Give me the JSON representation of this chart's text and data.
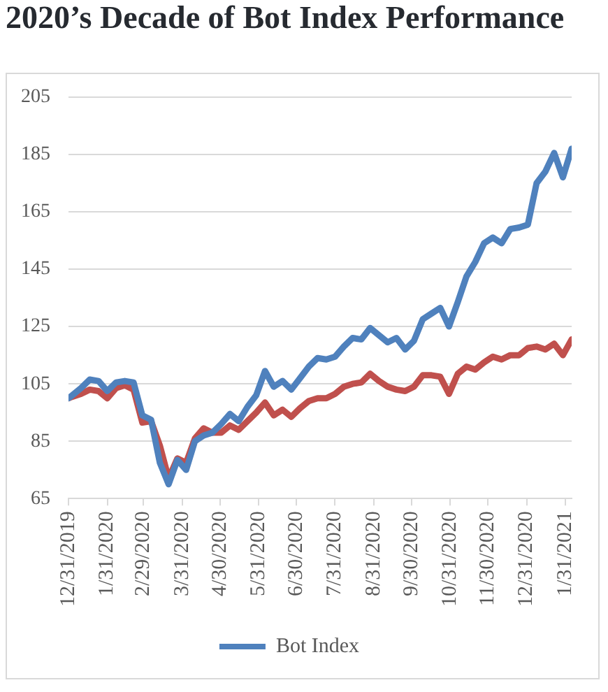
{
  "chart_data": {
    "type": "line",
    "title": "2020’s Decade of Bot Index Performance",
    "x": [
      "2019-12-31",
      "2020-01-03",
      "2020-01-10",
      "2020-01-17",
      "2020-01-24",
      "2020-01-31",
      "2020-02-07",
      "2020-02-14",
      "2020-02-21",
      "2020-02-28",
      "2020-03-06",
      "2020-03-13",
      "2020-03-20",
      "2020-03-27",
      "2020-04-03",
      "2020-04-10",
      "2020-04-17",
      "2020-04-24",
      "2020-05-01",
      "2020-05-08",
      "2020-05-15",
      "2020-05-22",
      "2020-05-29",
      "2020-06-05",
      "2020-06-12",
      "2020-06-19",
      "2020-06-26",
      "2020-07-03",
      "2020-07-10",
      "2020-07-17",
      "2020-07-24",
      "2020-07-31",
      "2020-08-07",
      "2020-08-14",
      "2020-08-21",
      "2020-08-28",
      "2020-09-04",
      "2020-09-11",
      "2020-09-18",
      "2020-09-25",
      "2020-10-02",
      "2020-10-09",
      "2020-10-16",
      "2020-10-23",
      "2020-10-30",
      "2020-11-06",
      "2020-11-13",
      "2020-11-20",
      "2020-11-27",
      "2020-12-04",
      "2020-12-11",
      "2020-12-18",
      "2020-12-25",
      "2021-01-01",
      "2021-01-08",
      "2021-01-15",
      "2021-01-22",
      "2021-01-29",
      "2021-02-05"
    ],
    "series": [
      {
        "name": "Bot Index",
        "color": "#4f81bd",
        "values": [
          100,
          101,
          103.5,
          106.5,
          106,
          102.5,
          105.5,
          106,
          105.5,
          94,
          92.5,
          77.5,
          70,
          78.5,
          75,
          85,
          87,
          88,
          91,
          94.5,
          92,
          97,
          101,
          109.5,
          104,
          106,
          103,
          107,
          111,
          114,
          113.5,
          114.5,
          118,
          121,
          120.5,
          124.5,
          122,
          119.5,
          121,
          117,
          120,
          127.5,
          129.5,
          131.5,
          125,
          133.5,
          142.5,
          147.5,
          154,
          156,
          154,
          159,
          159.5,
          160.5,
          175,
          179,
          185.5,
          177,
          187
        ]
      },
      {
        "color": "#c0504d",
        "values": [
          100,
          100.5,
          101.5,
          103,
          102.5,
          100,
          103.5,
          104.5,
          103,
          91.5,
          92,
          83.5,
          72,
          79,
          77.5,
          86,
          89.5,
          88,
          88,
          90.5,
          89,
          92,
          95,
          98.5,
          94,
          96,
          93.5,
          96.5,
          99,
          100,
          100,
          101.5,
          104,
          105,
          105.5,
          108.5,
          106,
          104,
          103,
          102.5,
          104,
          108,
          108,
          107.5,
          101.5,
          108.5,
          111,
          110,
          112.5,
          114.5,
          113.5,
          115,
          115,
          117.5,
          118,
          117,
          119,
          115,
          120.5
        ]
      }
    ],
    "xlim": [
      "2019-12-31",
      "2021-02-05"
    ],
    "xticks": [
      {
        "value": "2019-12-31",
        "label": "12/31/2019"
      },
      {
        "value": "2020-01-31",
        "label": "1/31/2020"
      },
      {
        "value": "2020-02-29",
        "label": "2/29/2020"
      },
      {
        "value": "2020-03-31",
        "label": "3/31/2020"
      },
      {
        "value": "2020-04-30",
        "label": "4/30/2020"
      },
      {
        "value": "2020-05-31",
        "label": "5/31/2020"
      },
      {
        "value": "2020-06-30",
        "label": "6/30/2020"
      },
      {
        "value": "2020-07-31",
        "label": "7/31/2020"
      },
      {
        "value": "2020-08-31",
        "label": "8/31/2020"
      },
      {
        "value": "2020-09-30",
        "label": "9/30/2020"
      },
      {
        "value": "2020-10-31",
        "label": "10/31/2020"
      },
      {
        "value": "2020-11-30",
        "label": "11/30/2020"
      },
      {
        "value": "2020-12-31",
        "label": "12/31/2020"
      },
      {
        "value": "2021-01-31",
        "label": "1/31/2021"
      }
    ],
    "ylim": [
      65,
      205
    ],
    "yticks": [
      65,
      85,
      105,
      125,
      145,
      165,
      185,
      205
    ],
    "grid": "y",
    "legend": "bottom"
  }
}
